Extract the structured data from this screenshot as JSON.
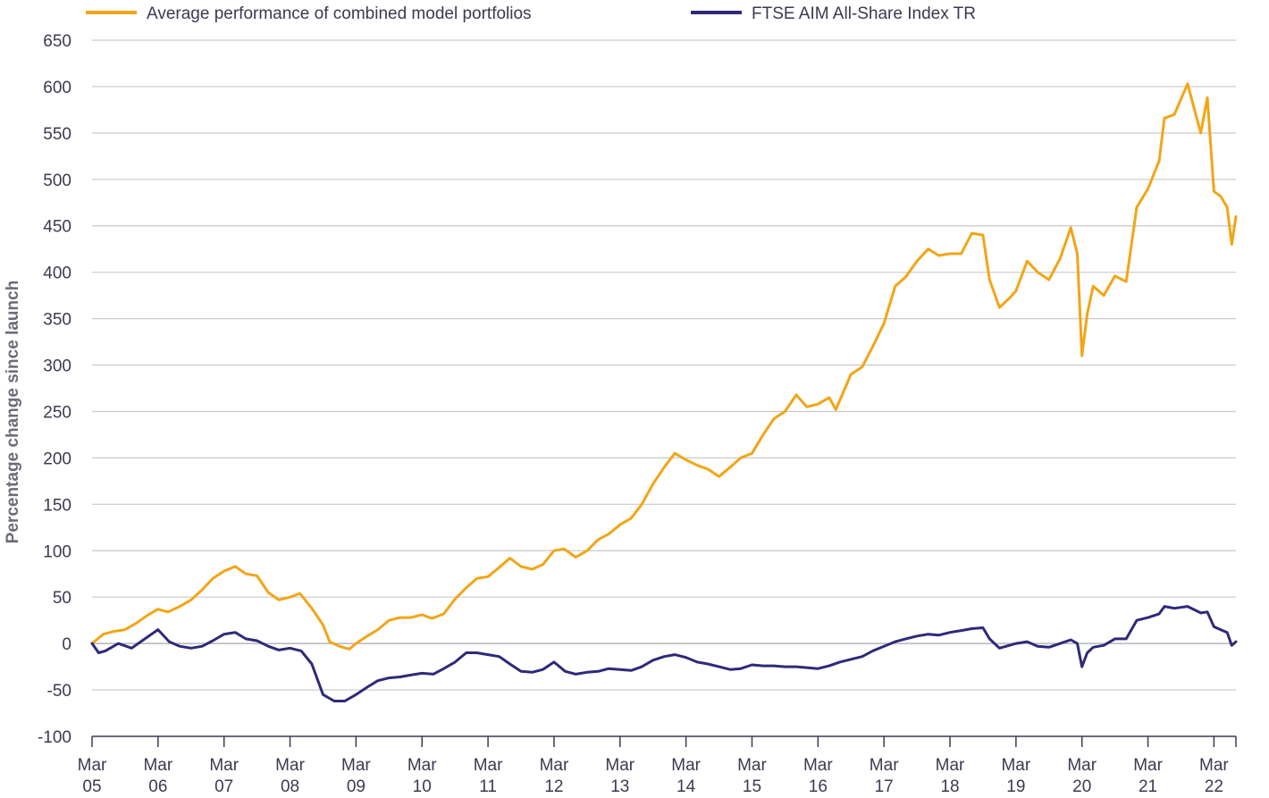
{
  "chart_data": {
    "type": "line",
    "title": "",
    "xlabel": "",
    "ylabel": "Percentage change since launch",
    "ylim": [
      -100,
      650
    ],
    "yticks": [
      -100,
      -50,
      0,
      50,
      100,
      150,
      200,
      250,
      300,
      350,
      400,
      450,
      500,
      550,
      600,
      650
    ],
    "x_range": [
      2005.0,
      2022.333
    ],
    "x_ticks": [
      {
        "x": 2005,
        "line1": "Mar",
        "line2": "05"
      },
      {
        "x": 2006,
        "line1": "Mar",
        "line2": "06"
      },
      {
        "x": 2007,
        "line1": "Mar",
        "line2": "07"
      },
      {
        "x": 2008,
        "line1": "Mar",
        "line2": "08"
      },
      {
        "x": 2009,
        "line1": "Mar",
        "line2": "09"
      },
      {
        "x": 2010,
        "line1": "Mar",
        "line2": "10"
      },
      {
        "x": 2011,
        "line1": "Mar",
        "line2": "11"
      },
      {
        "x": 2012,
        "line1": "Mar",
        "line2": "12"
      },
      {
        "x": 2013,
        "line1": "Mar",
        "line2": "13"
      },
      {
        "x": 2014,
        "line1": "Mar",
        "line2": "14"
      },
      {
        "x": 2015,
        "line1": "Mar",
        "line2": "15"
      },
      {
        "x": 2016,
        "line1": "Mar",
        "line2": "16"
      },
      {
        "x": 2017,
        "line1": "Mar",
        "line2": "17"
      },
      {
        "x": 2018,
        "line1": "Mar",
        "line2": "18"
      },
      {
        "x": 2019,
        "line1": "Mar",
        "line2": "19"
      },
      {
        "x": 2020,
        "line1": "Mar",
        "line2": "20"
      },
      {
        "x": 2021,
        "line1": "Mar",
        "line2": "21"
      },
      {
        "x": 2022,
        "line1": "Mar",
        "line2": "22"
      }
    ],
    "legend_position": "top-left",
    "series": [
      {
        "name": "Average performance of combined model portfolios",
        "color": "#f2a516",
        "points": [
          [
            2005.0,
            0
          ],
          [
            2005.17,
            10
          ],
          [
            2005.33,
            13
          ],
          [
            2005.5,
            15
          ],
          [
            2005.67,
            22
          ],
          [
            2005.83,
            30
          ],
          [
            2006.0,
            37
          ],
          [
            2006.15,
            34
          ],
          [
            2006.33,
            40
          ],
          [
            2006.5,
            47
          ],
          [
            2006.67,
            58
          ],
          [
            2006.83,
            70
          ],
          [
            2007.0,
            78
          ],
          [
            2007.17,
            83
          ],
          [
            2007.33,
            75
          ],
          [
            2007.5,
            73
          ],
          [
            2007.67,
            55
          ],
          [
            2007.83,
            47
          ],
          [
            2008.0,
            50
          ],
          [
            2008.15,
            54
          ],
          [
            2008.33,
            38
          ],
          [
            2008.5,
            20
          ],
          [
            2008.6,
            2
          ],
          [
            2008.75,
            -3
          ],
          [
            2008.9,
            -6
          ],
          [
            2009.0,
            0
          ],
          [
            2009.17,
            8
          ],
          [
            2009.33,
            15
          ],
          [
            2009.5,
            25
          ],
          [
            2009.67,
            28
          ],
          [
            2009.83,
            28
          ],
          [
            2010.0,
            31
          ],
          [
            2010.15,
            27
          ],
          [
            2010.33,
            32
          ],
          [
            2010.5,
            48
          ],
          [
            2010.67,
            60
          ],
          [
            2010.83,
            70
          ],
          [
            2011.0,
            72
          ],
          [
            2011.17,
            82
          ],
          [
            2011.33,
            92
          ],
          [
            2011.5,
            83
          ],
          [
            2011.67,
            80
          ],
          [
            2011.83,
            85
          ],
          [
            2012.0,
            100
          ],
          [
            2012.15,
            102
          ],
          [
            2012.33,
            93
          ],
          [
            2012.5,
            100
          ],
          [
            2012.67,
            112
          ],
          [
            2012.83,
            118
          ],
          [
            2013.0,
            128
          ],
          [
            2013.17,
            135
          ],
          [
            2013.33,
            150
          ],
          [
            2013.5,
            172
          ],
          [
            2013.67,
            190
          ],
          [
            2013.83,
            205
          ],
          [
            2014.0,
            198
          ],
          [
            2014.17,
            192
          ],
          [
            2014.33,
            188
          ],
          [
            2014.5,
            180
          ],
          [
            2014.67,
            190
          ],
          [
            2014.83,
            200
          ],
          [
            2015.0,
            205
          ],
          [
            2015.17,
            225
          ],
          [
            2015.33,
            242
          ],
          [
            2015.5,
            250
          ],
          [
            2015.67,
            268
          ],
          [
            2015.83,
            255
          ],
          [
            2016.0,
            258
          ],
          [
            2016.17,
            265
          ],
          [
            2016.27,
            252
          ],
          [
            2016.5,
            290
          ],
          [
            2016.67,
            298
          ],
          [
            2016.83,
            320
          ],
          [
            2017.0,
            345
          ],
          [
            2017.17,
            385
          ],
          [
            2017.33,
            395
          ],
          [
            2017.5,
            412
          ],
          [
            2017.67,
            425
          ],
          [
            2017.83,
            418
          ],
          [
            2018.0,
            420
          ],
          [
            2018.17,
            420
          ],
          [
            2018.33,
            442
          ],
          [
            2018.5,
            440
          ],
          [
            2018.6,
            392
          ],
          [
            2018.75,
            362
          ],
          [
            2018.9,
            372
          ],
          [
            2019.0,
            380
          ],
          [
            2019.17,
            412
          ],
          [
            2019.33,
            400
          ],
          [
            2019.5,
            392
          ],
          [
            2019.67,
            415
          ],
          [
            2019.83,
            448
          ],
          [
            2019.93,
            420
          ],
          [
            2020.0,
            310
          ],
          [
            2020.08,
            355
          ],
          [
            2020.17,
            385
          ],
          [
            2020.33,
            375
          ],
          [
            2020.5,
            396
          ],
          [
            2020.67,
            390
          ],
          [
            2020.83,
            470
          ],
          [
            2021.0,
            490
          ],
          [
            2021.17,
            520
          ],
          [
            2021.25,
            566
          ],
          [
            2021.4,
            570
          ],
          [
            2021.6,
            603
          ],
          [
            2021.8,
            550
          ],
          [
            2021.9,
            588
          ],
          [
            2022.0,
            487
          ],
          [
            2022.1,
            482
          ],
          [
            2022.2,
            470
          ],
          [
            2022.27,
            430
          ],
          [
            2022.333,
            460
          ]
        ]
      },
      {
        "name": "FTSE AIM All-Share Index TR",
        "color": "#2e2a78",
        "points": [
          [
            2005.0,
            0
          ],
          [
            2005.1,
            -10
          ],
          [
            2005.2,
            -8
          ],
          [
            2005.4,
            0
          ],
          [
            2005.6,
            -5
          ],
          [
            2005.8,
            5
          ],
          [
            2006.0,
            15
          ],
          [
            2006.17,
            2
          ],
          [
            2006.33,
            -3
          ],
          [
            2006.5,
            -5
          ],
          [
            2006.67,
            -3
          ],
          [
            2006.83,
            3
          ],
          [
            2007.0,
            10
          ],
          [
            2007.17,
            12
          ],
          [
            2007.33,
            5
          ],
          [
            2007.5,
            3
          ],
          [
            2007.67,
            -3
          ],
          [
            2007.83,
            -7
          ],
          [
            2008.0,
            -5
          ],
          [
            2008.17,
            -8
          ],
          [
            2008.33,
            -22
          ],
          [
            2008.5,
            -55
          ],
          [
            2008.67,
            -62
          ],
          [
            2008.83,
            -62
          ],
          [
            2009.0,
            -55
          ],
          [
            2009.17,
            -47
          ],
          [
            2009.33,
            -40
          ],
          [
            2009.5,
            -37
          ],
          [
            2009.67,
            -36
          ],
          [
            2009.83,
            -34
          ],
          [
            2010.0,
            -32
          ],
          [
            2010.17,
            -33
          ],
          [
            2010.33,
            -27
          ],
          [
            2010.5,
            -20
          ],
          [
            2010.67,
            -10
          ],
          [
            2010.83,
            -10
          ],
          [
            2011.0,
            -12
          ],
          [
            2011.17,
            -14
          ],
          [
            2011.33,
            -22
          ],
          [
            2011.5,
            -30
          ],
          [
            2011.67,
            -31
          ],
          [
            2011.83,
            -28
          ],
          [
            2012.0,
            -20
          ],
          [
            2012.17,
            -30
          ],
          [
            2012.33,
            -33
          ],
          [
            2012.5,
            -31
          ],
          [
            2012.67,
            -30
          ],
          [
            2012.83,
            -27
          ],
          [
            2013.0,
            -28
          ],
          [
            2013.17,
            -29
          ],
          [
            2013.33,
            -25
          ],
          [
            2013.5,
            -18
          ],
          [
            2013.67,
            -14
          ],
          [
            2013.83,
            -12
          ],
          [
            2014.0,
            -15
          ],
          [
            2014.17,
            -20
          ],
          [
            2014.33,
            -22
          ],
          [
            2014.5,
            -25
          ],
          [
            2014.67,
            -28
          ],
          [
            2014.83,
            -27
          ],
          [
            2015.0,
            -23
          ],
          [
            2015.17,
            -24
          ],
          [
            2015.33,
            -24
          ],
          [
            2015.5,
            -25
          ],
          [
            2015.67,
            -25
          ],
          [
            2015.83,
            -26
          ],
          [
            2016.0,
            -27
          ],
          [
            2016.17,
            -24
          ],
          [
            2016.33,
            -20
          ],
          [
            2016.5,
            -17
          ],
          [
            2016.67,
            -14
          ],
          [
            2016.83,
            -8
          ],
          [
            2017.0,
            -3
          ],
          [
            2017.17,
            2
          ],
          [
            2017.33,
            5
          ],
          [
            2017.5,
            8
          ],
          [
            2017.67,
            10
          ],
          [
            2017.83,
            9
          ],
          [
            2018.0,
            12
          ],
          [
            2018.17,
            14
          ],
          [
            2018.33,
            16
          ],
          [
            2018.5,
            17
          ],
          [
            2018.6,
            5
          ],
          [
            2018.75,
            -5
          ],
          [
            2018.9,
            -2
          ],
          [
            2019.0,
            0
          ],
          [
            2019.17,
            2
          ],
          [
            2019.33,
            -3
          ],
          [
            2019.5,
            -4
          ],
          [
            2019.67,
            0
          ],
          [
            2019.83,
            4
          ],
          [
            2019.93,
            0
          ],
          [
            2020.0,
            -25
          ],
          [
            2020.08,
            -10
          ],
          [
            2020.17,
            -4
          ],
          [
            2020.33,
            -2
          ],
          [
            2020.5,
            5
          ],
          [
            2020.67,
            5
          ],
          [
            2020.83,
            25
          ],
          [
            2021.0,
            28
          ],
          [
            2021.17,
            32
          ],
          [
            2021.25,
            40
          ],
          [
            2021.4,
            38
          ],
          [
            2021.6,
            40
          ],
          [
            2021.8,
            33
          ],
          [
            2021.9,
            34
          ],
          [
            2022.0,
            18
          ],
          [
            2022.1,
            15
          ],
          [
            2022.2,
            12
          ],
          [
            2022.27,
            -2
          ],
          [
            2022.333,
            2
          ]
        ]
      }
    ]
  }
}
